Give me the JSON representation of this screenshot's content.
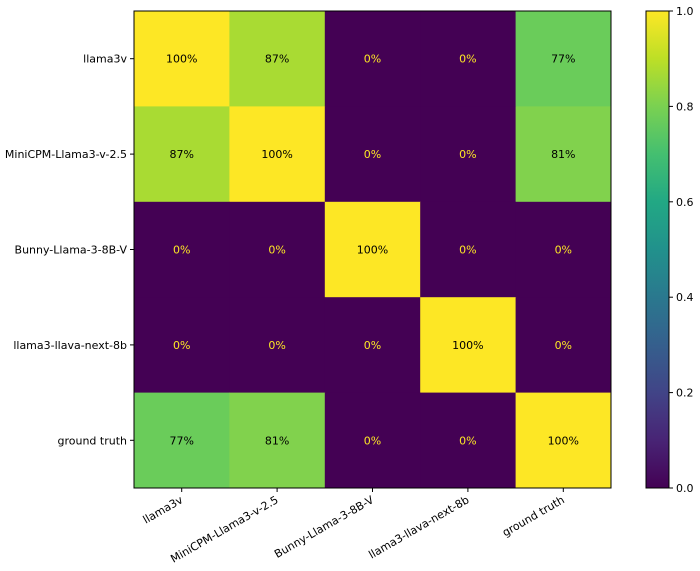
{
  "chart_data": {
    "type": "heatmap",
    "title": "",
    "xlabel": "",
    "ylabel": "",
    "rows": [
      "llama3v",
      "MiniCPM-Llama3-v-2.5",
      "Bunny-Llama-3-8B-V",
      "llama3-llava-next-8b",
      "ground truth"
    ],
    "cols": [
      "llama3v",
      "MiniCPM-Llama3-v-2.5",
      "Bunny-Llama-3-8B-V",
      "llama3-llava-next-8b",
      "ground truth"
    ],
    "values": [
      [
        1.0,
        0.87,
        0.0,
        0.0,
        0.77
      ],
      [
        0.87,
        1.0,
        0.0,
        0.0,
        0.81
      ],
      [
        0.0,
        0.0,
        1.0,
        0.0,
        0.0
      ],
      [
        0.0,
        0.0,
        0.0,
        1.0,
        0.0
      ],
      [
        0.77,
        0.81,
        0.0,
        0.0,
        1.0
      ]
    ],
    "cell_labels": [
      [
        "100%",
        "87%",
        "0%",
        "0%",
        "77%"
      ],
      [
        "87%",
        "100%",
        "0%",
        "0%",
        "81%"
      ],
      [
        "0%",
        "0%",
        "100%",
        "0%",
        "0%"
      ],
      [
        "0%",
        "0%",
        "0%",
        "100%",
        "0%"
      ],
      [
        "77%",
        "81%",
        "0%",
        "0%",
        "100%"
      ]
    ],
    "colormap": "viridis",
    "vmin": 0.0,
    "vmax": 1.0,
    "colorbar_ticks": [
      "0.0",
      "0.2",
      "0.4",
      "0.6",
      "0.8",
      "1.0"
    ],
    "label_color_low": "#fde725",
    "label_color_high": "#000000"
  }
}
